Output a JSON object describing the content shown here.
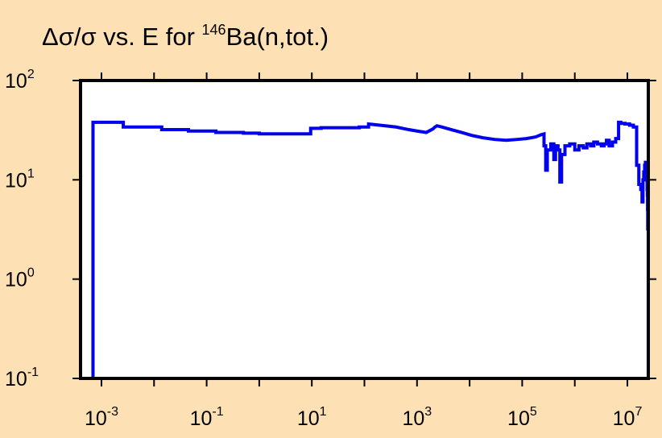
{
  "chart_data": {
    "type": "line",
    "line_style": "step",
    "title_parts": {
      "prefix": "Δσ/σ vs. E for ",
      "isotope_mass": "146",
      "suffix": "Ba(n,tot.)"
    },
    "xscale": "log",
    "yscale": "log",
    "xlim": [
      0.0004,
      25000000
    ],
    "ylim": [
      0.1,
      100
    ],
    "x_ticks": [
      {
        "base": "10",
        "exp": "-3",
        "value": 0.001
      },
      {
        "base": "10",
        "exp": "-1",
        "value": 0.1
      },
      {
        "base": "10",
        "exp": "1",
        "value": 10
      },
      {
        "base": "10",
        "exp": "3",
        "value": 1000
      },
      {
        "base": "10",
        "exp": "5",
        "value": 100000
      },
      {
        "base": "10",
        "exp": "7",
        "value": 10000000
      }
    ],
    "y_ticks": [
      {
        "base": "10",
        "exp": "2",
        "value": 100
      },
      {
        "base": "10",
        "exp": "1",
        "value": 10
      },
      {
        "base": "10",
        "exp": "0",
        "value": 1
      },
      {
        "base": "10",
        "exp": "-1",
        "value": 0.1
      }
    ],
    "series": [
      {
        "color": "#0000ee",
        "points": [
          [
            0.00069,
            0.1
          ],
          [
            0.00069,
            38
          ],
          [
            0.0026,
            38
          ],
          [
            0.0026,
            34
          ],
          [
            0.014,
            34
          ],
          [
            0.014,
            32
          ],
          [
            0.045,
            32
          ],
          [
            0.045,
            31
          ],
          [
            0.15,
            31
          ],
          [
            0.15,
            30
          ],
          [
            0.5,
            30
          ],
          [
            0.5,
            29.5
          ],
          [
            1.0,
            29.5
          ],
          [
            1.0,
            29
          ],
          [
            9.5,
            29
          ],
          [
            9.5,
            33
          ],
          [
            15,
            33
          ],
          [
            15,
            33.5
          ],
          [
            80,
            33.5
          ],
          [
            80,
            34
          ],
          [
            120,
            34
          ],
          [
            120,
            36.5
          ],
          [
            250,
            35
          ],
          [
            400,
            34
          ],
          [
            700,
            32
          ],
          [
            1000,
            31
          ],
          [
            1500,
            30
          ],
          [
            2000,
            32.5
          ],
          [
            2200,
            34
          ],
          [
            2400,
            35
          ],
          [
            3000,
            34
          ],
          [
            4500,
            32
          ],
          [
            7000,
            30
          ],
          [
            11000,
            28
          ],
          [
            18000,
            26.5
          ],
          [
            30000,
            25.5
          ],
          [
            50000,
            25
          ],
          [
            80000,
            25.5
          ],
          [
            120000,
            26
          ],
          [
            180000,
            27
          ],
          [
            230000,
            28.5
          ],
          [
            260000,
            29
          ],
          [
            260000,
            22
          ],
          [
            280000,
            22
          ],
          [
            280000,
            12.5
          ],
          [
            300000,
            12.5
          ],
          [
            300000,
            20
          ],
          [
            350000,
            20
          ],
          [
            350000,
            23
          ],
          [
            400000,
            23
          ],
          [
            400000,
            16
          ],
          [
            430000,
            16
          ],
          [
            430000,
            22
          ],
          [
            480000,
            22
          ],
          [
            480000,
            20
          ],
          [
            520000,
            20
          ],
          [
            520000,
            9.5
          ],
          [
            560000,
            9.5
          ],
          [
            560000,
            18
          ],
          [
            650000,
            18
          ],
          [
            650000,
            22
          ],
          [
            800000,
            22
          ],
          [
            800000,
            23
          ],
          [
            1000000,
            23
          ],
          [
            1000000,
            20
          ],
          [
            1200000,
            20
          ],
          [
            1200000,
            22
          ],
          [
            1450000,
            22
          ],
          [
            1450000,
            21
          ],
          [
            1700000,
            21
          ],
          [
            1700000,
            23
          ],
          [
            2000000,
            23
          ],
          [
            2000000,
            22
          ],
          [
            2300000,
            22
          ],
          [
            2300000,
            24
          ],
          [
            2700000,
            24
          ],
          [
            2700000,
            23
          ],
          [
            3200000,
            23
          ],
          [
            3200000,
            22
          ],
          [
            3600000,
            22
          ],
          [
            3600000,
            23
          ],
          [
            4000000,
            23
          ],
          [
            4000000,
            25
          ],
          [
            4500000,
            25
          ],
          [
            4500000,
            22
          ],
          [
            5200000,
            22
          ],
          [
            5200000,
            24
          ],
          [
            6000000,
            24
          ],
          [
            6000000,
            26
          ],
          [
            6800000,
            26
          ],
          [
            6800000,
            38
          ],
          [
            7500000,
            38
          ],
          [
            7500000,
            37
          ],
          [
            9000000,
            37
          ],
          [
            9000000,
            36.5
          ],
          [
            11000000,
            36.5
          ],
          [
            11000000,
            35.5
          ],
          [
            13000000,
            35.5
          ],
          [
            13000000,
            34
          ],
          [
            15000000,
            34
          ],
          [
            15000000,
            14
          ],
          [
            16500000,
            14
          ],
          [
            16500000,
            9
          ],
          [
            18000000,
            9
          ],
          [
            18000000,
            8
          ],
          [
            19000000,
            8
          ],
          [
            19000000,
            6
          ],
          [
            19800000,
            6
          ],
          [
            19800000,
            10
          ],
          [
            20500000,
            10
          ],
          [
            20500000,
            12
          ],
          [
            21300000,
            12
          ],
          [
            21300000,
            14
          ],
          [
            22000000,
            14
          ],
          [
            22000000,
            15
          ],
          [
            22500000,
            15
          ],
          [
            22500000,
            14
          ],
          [
            23000000,
            14
          ],
          [
            23000000,
            13
          ],
          [
            23400000,
            13
          ],
          [
            23400000,
            10
          ],
          [
            23700000,
            10
          ],
          [
            23700000,
            8
          ],
          [
            24000000,
            8
          ],
          [
            24000000,
            7
          ],
          [
            24200000,
            7
          ],
          [
            24200000,
            5
          ],
          [
            24400000,
            5
          ],
          [
            24400000,
            3.2
          ],
          [
            24550000,
            3.2
          ],
          [
            24550000,
            3.8
          ],
          [
            24700000,
            3.8
          ],
          [
            24700000,
            6
          ],
          [
            24850000,
            6
          ],
          [
            24850000,
            9.5
          ],
          [
            24950000,
            9.5
          ],
          [
            24950000,
            0.1
          ]
        ]
      }
    ]
  }
}
